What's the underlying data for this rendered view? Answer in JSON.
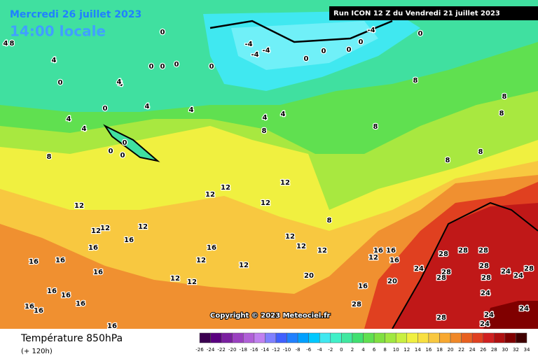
{
  "header": {
    "date": "Mercredi 26 juillet 2023",
    "time": "14:00 locale",
    "run": "Run ICON 12 Z du Vendredi 21 juillet 2023"
  },
  "copyright": "Copyright © 2023 Meteociel.fr",
  "footer": {
    "title": "Température 850hPa",
    "lead": "(+ 120h)"
  },
  "legend": {
    "ticks": [
      -26,
      -24,
      -22,
      -20,
      -18,
      -16,
      -14,
      -12,
      -10,
      -8,
      -6,
      -4,
      -2,
      0,
      2,
      4,
      6,
      8,
      10,
      12,
      14,
      16,
      18,
      20,
      22,
      24,
      26,
      28,
      30,
      32,
      34
    ],
    "colors": [
      "#3a0050",
      "#5a0080",
      "#7a20a0",
      "#9a40c0",
      "#b060d8",
      "#c080f0",
      "#8080ff",
      "#4060ff",
      "#2080ff",
      "#00a0ff",
      "#00c8ff",
      "#40e8f0",
      "#40f0c8",
      "#40e8a0",
      "#40e070",
      "#60e050",
      "#80e040",
      "#a0e840",
      "#c8f040",
      "#f0f040",
      "#f8e040",
      "#f8c840",
      "#f8a830",
      "#f08828",
      "#e86020",
      "#e04020",
      "#d02020",
      "#b01010",
      "#800000",
      "#400000"
    ]
  },
  "isotherm_labels": [
    0,
    -4,
    0,
    -4,
    -4,
    -4,
    0,
    0,
    0,
    0,
    0,
    0,
    0,
    0,
    4,
    4,
    4,
    4,
    4,
    0,
    0,
    0,
    0,
    8,
    8,
    8,
    8,
    8,
    8,
    8,
    8,
    12,
    12,
    12,
    12,
    12,
    12,
    12,
    12,
    12,
    12,
    12,
    12,
    12,
    12,
    12,
    16,
    16,
    16,
    16,
    16,
    16,
    16,
    16,
    16,
    16,
    16,
    16,
    16,
    16,
    16,
    16,
    12,
    20,
    20,
    24,
    24,
    24,
    24,
    24,
    24,
    24,
    28,
    28,
    28,
    28,
    28,
    28,
    28,
    28,
    28,
    28,
    8,
    4,
    0,
    4,
    4,
    4,
    4,
    8
  ]
}
